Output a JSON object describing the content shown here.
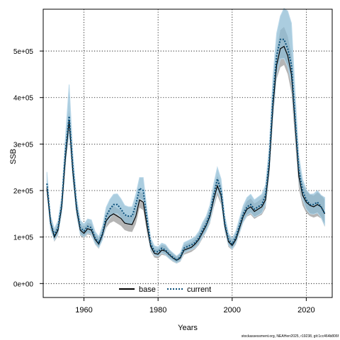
{
  "chart_data": {
    "type": "line",
    "title": "",
    "xlabel": "Years",
    "ylabel": "SSB",
    "xlim": [
      1949,
      2027
    ],
    "ylim": [
      -30000,
      590000
    ],
    "x_ticks": [
      1960,
      1980,
      2000,
      2020
    ],
    "x_tick_labels": [
      "1960",
      "1980",
      "2000",
      "2020"
    ],
    "y_ticks": [
      0,
      100000,
      200000,
      300000,
      400000,
      500000
    ],
    "y_tick_labels": [
      "0e+00",
      "1e+05",
      "2e+05",
      "3e+05",
      "4e+05",
      "5e+05"
    ],
    "grid": true,
    "legend_position": "bottom",
    "footer_text": "stockassessment.org, NEAHerr2025, r19238, git:1cc464b806f",
    "colors": {
      "base_band": "#a8a8a8",
      "current_band": "#8fbcd4",
      "current_band_edge": "#bcd9ea",
      "base_line": "#000000",
      "current_line": "#0a4f7a",
      "grid": "#000000"
    },
    "x": [
      1950,
      1951,
      1952,
      1953,
      1954,
      1955,
      1956,
      1957,
      1958,
      1959,
      1960,
      1961,
      1962,
      1963,
      1964,
      1965,
      1966,
      1967,
      1968,
      1969,
      1970,
      1971,
      1972,
      1973,
      1974,
      1975,
      1976,
      1977,
      1978,
      1979,
      1980,
      1981,
      1982,
      1983,
      1984,
      1985,
      1986,
      1987,
      1988,
      1989,
      1990,
      1991,
      1992,
      1993,
      1994,
      1995,
      1996,
      1997,
      1998,
      1999,
      2000,
      2001,
      2002,
      2003,
      2004,
      2005,
      2006,
      2007,
      2008,
      2009,
      2010,
      2011,
      2012,
      2013,
      2014,
      2015,
      2016,
      2017,
      2018,
      2019,
      2020,
      2021,
      2022,
      2023,
      2024,
      2025
    ],
    "series": [
      {
        "name": "base",
        "style": "solid",
        "values": [
          205000,
          130000,
          100000,
          115000,
          165000,
          270000,
          350000,
          240000,
          160000,
          115000,
          108000,
          118000,
          115000,
          95000,
          85000,
          105000,
          135000,
          145000,
          150000,
          145000,
          140000,
          130000,
          128000,
          127000,
          145000,
          180000,
          175000,
          125000,
          80000,
          65000,
          63000,
          72000,
          70000,
          62000,
          55000,
          50000,
          55000,
          72000,
          75000,
          78000,
          85000,
          95000,
          110000,
          125000,
          145000,
          180000,
          210000,
          190000,
          125000,
          90000,
          82000,
          95000,
          120000,
          145000,
          160000,
          165000,
          155000,
          160000,
          165000,
          180000,
          250000,
          380000,
          470000,
          505000,
          510000,
          490000,
          450000,
          340000,
          230000,
          190000,
          175000,
          168000,
          165000,
          170000,
          165000,
          150000
        ],
        "lower": [
          190000,
          118000,
          90000,
          103000,
          150000,
          250000,
          330000,
          220000,
          145000,
          103000,
          97000,
          106000,
          103000,
          84000,
          75000,
          93000,
          120000,
          130000,
          134000,
          129000,
          124000,
          115000,
          112000,
          111000,
          128000,
          163000,
          158000,
          110000,
          70000,
          56000,
          54000,
          62000,
          60000,
          53000,
          47000,
          43000,
          47000,
          62000,
          65000,
          68000,
          74000,
          83000,
          97000,
          111000,
          129000,
          162000,
          190000,
          170000,
          111000,
          79000,
          72000,
          84000,
          107000,
          131000,
          144000,
          148000,
          139000,
          144000,
          148000,
          162000,
          228000,
          350000,
          440000,
          465000,
          470000,
          450000,
          410000,
          305000,
          205000,
          168000,
          152000,
          145000,
          142000,
          145000,
          140000,
          122000
        ],
        "upper": [
          222000,
          143000,
          111000,
          128000,
          181000,
          292000,
          372000,
          262000,
          176000,
          128000,
          120000,
          131000,
          128000,
          107000,
          96000,
          118000,
          151000,
          161000,
          167000,
          162000,
          157000,
          146000,
          145000,
          144000,
          163000,
          198000,
          193000,
          141000,
          91000,
          75000,
          73000,
          83000,
          81000,
          72000,
          64000,
          58000,
          64000,
          83000,
          86000,
          89000,
          97000,
          108000,
          124000,
          140000,
          162000,
          199000,
          232000,
          211000,
          140000,
          102000,
          93000,
          107000,
          134000,
          160000,
          177000,
          183000,
          172000,
          177000,
          183000,
          199000,
          273000,
          412000,
          502000,
          545000,
          552000,
          532000,
          492000,
          377000,
          256000,
          213000,
          199000,
          192000,
          189000,
          196000,
          191000,
          180000
        ]
      },
      {
        "name": "current",
        "style": "dotted",
        "values": [
          215000,
          130000,
          105000,
          120000,
          170000,
          285000,
          360000,
          250000,
          165000,
          120000,
          113000,
          123000,
          120000,
          98000,
          88000,
          108000,
          145000,
          160000,
          170000,
          170000,
          160000,
          148000,
          145000,
          145000,
          170000,
          205000,
          200000,
          140000,
          85000,
          70000,
          68000,
          76000,
          72000,
          63000,
          57000,
          51000,
          57000,
          76000,
          80000,
          83000,
          88000,
          98000,
          115000,
          128000,
          150000,
          190000,
          225000,
          200000,
          130000,
          95000,
          85000,
          100000,
          125000,
          150000,
          165000,
          170000,
          160000,
          165000,
          170000,
          190000,
          265000,
          400000,
          490000,
          525000,
          525000,
          505000,
          470000,
          355000,
          245000,
          200000,
          180000,
          170000,
          170000,
          175000,
          165000,
          150000
        ],
        "lower": [
          198000,
          116000,
          93000,
          106000,
          152000,
          258000,
          325000,
          225000,
          147000,
          106000,
          100000,
          109000,
          106000,
          86000,
          77000,
          94000,
          128000,
          141000,
          150000,
          150000,
          141000,
          130000,
          127000,
          127000,
          150000,
          183000,
          178000,
          123000,
          74000,
          61000,
          59000,
          66000,
          62000,
          54000,
          49000,
          44000,
          49000,
          66000,
          70000,
          73000,
          77000,
          86000,
          101000,
          113000,
          133000,
          170000,
          200000,
          178000,
          115000,
          83000,
          74000,
          87000,
          110000,
          133000,
          147000,
          152000,
          143000,
          147000,
          152000,
          170000,
          238000,
          360000,
          450000,
          483000,
          484000,
          466000,
          432000,
          326000,
          222000,
          181000,
          160000,
          150000,
          149000,
          152000,
          142000,
          125000
        ],
        "upper": [
          240000,
          146000,
          118000,
          135000,
          190000,
          315000,
          428000,
          280000,
          185000,
          136000,
          128000,
          139000,
          137000,
          112000,
          101000,
          124000,
          164000,
          181000,
          192000,
          193000,
          182000,
          168000,
          165000,
          165000,
          192000,
          228000,
          228000,
          160000,
          98000,
          81000,
          79000,
          87000,
          84000,
          73000,
          66000,
          59000,
          66000,
          88000,
          92000,
          96000,
          101000,
          112000,
          131000,
          145000,
          169000,
          214000,
          250000,
          225000,
          147000,
          108000,
          97000,
          113000,
          141000,
          168000,
          185000,
          192000,
          180000,
          186000,
          192000,
          212000,
          294000,
          445000,
          538000,
          575000,
          592000,
          586000,
          560000,
          410000,
          275000,
          224000,
          202000,
          192000,
          193000,
          200000,
          190000,
          185000
        ]
      }
    ]
  }
}
